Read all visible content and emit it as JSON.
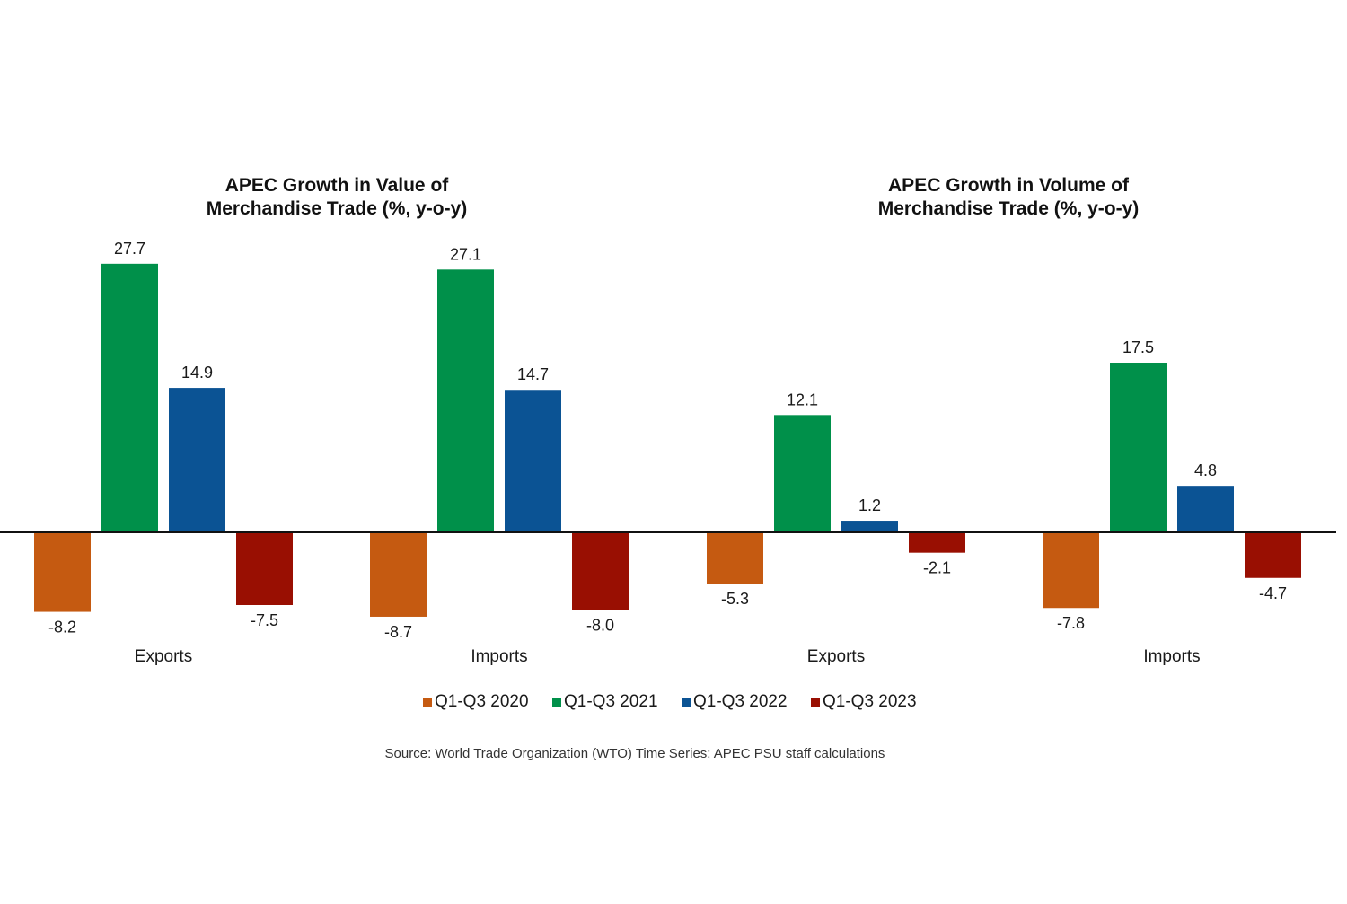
{
  "chart_data": {
    "type": "bar",
    "legend_position": "bottom-center",
    "grid": false,
    "source": "Source: World Trade Organization (WTO) Time Series; APEC PSU staff calculations",
    "series_meta": [
      {
        "name": "Q1-Q3 2020",
        "color": "#c55a11"
      },
      {
        "name": "Q1-Q3 2021",
        "color": "#00904a"
      },
      {
        "name": "Q1-Q3 2022",
        "color": "#0b5394"
      },
      {
        "name": "Q1-Q3 2023",
        "color": "#990f02"
      }
    ],
    "panels": [
      {
        "title_lines": [
          "APEC Growth in Value of",
          "Merchandise Trade (%, y-o-y)"
        ],
        "categories": [
          "Exports",
          "Imports"
        ],
        "series": [
          {
            "name": "Q1-Q3 2020",
            "values": [
              -8.2,
              -8.7
            ],
            "labels": [
              "-8.2",
              "-8.7"
            ]
          },
          {
            "name": "Q1-Q3 2021",
            "values": [
              27.7,
              27.1
            ],
            "labels": [
              "27.7",
              "27.1"
            ]
          },
          {
            "name": "Q1-Q3 2022",
            "values": [
              14.9,
              14.7
            ],
            "labels": [
              "14.9",
              "14.7"
            ]
          },
          {
            "name": "Q1-Q3 2023",
            "values": [
              -7.5,
              -8.0
            ],
            "labels": [
              "-7.5",
              "-8.0"
            ]
          }
        ]
      },
      {
        "title_lines": [
          "APEC Growth in Volume of",
          "Merchandise Trade (%, y-o-y)"
        ],
        "categories": [
          "Exports",
          "Imports"
        ],
        "series": [
          {
            "name": "Q1-Q3 2020",
            "values": [
              -5.3,
              -7.8
            ],
            "labels": [
              "-5.3",
              "-7.8"
            ]
          },
          {
            "name": "Q1-Q3 2021",
            "values": [
              12.1,
              17.5
            ],
            "labels": [
              "12.1",
              "17.5"
            ]
          },
          {
            "name": "Q1-Q3 2022",
            "values": [
              1.2,
              4.8
            ],
            "labels": [
              "1.2",
              "4.8"
            ]
          },
          {
            "name": "Q1-Q3 2023",
            "values": [
              -2.1,
              -4.7
            ],
            "labels": [
              "-2.1",
              "-4.7"
            ]
          }
        ]
      }
    ]
  }
}
